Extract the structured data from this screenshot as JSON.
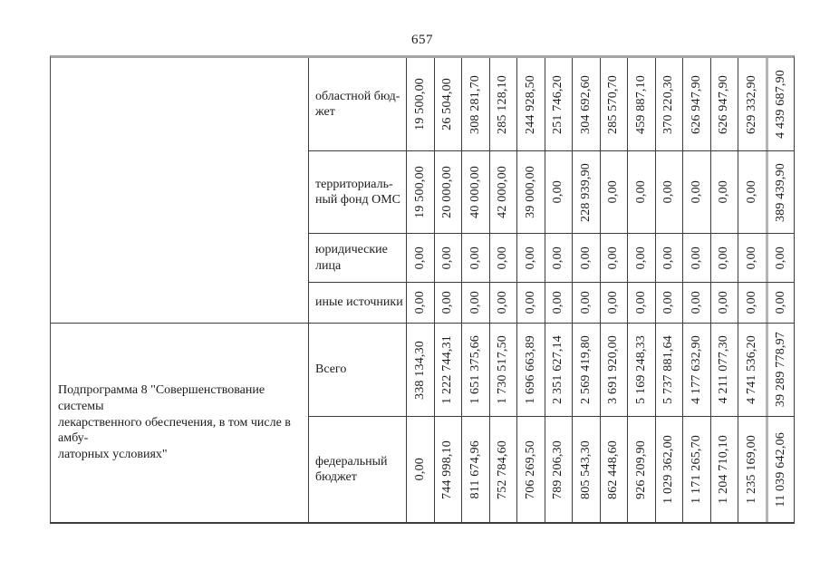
{
  "page": {
    "number": "657"
  },
  "colors": {
    "grid_line": "#3c3c3c",
    "outer_top_line": "#a3a3a3",
    "total_divider_line": "#b5b5b5",
    "background": "#ffffff"
  },
  "table": {
    "program_name": "Подпрограмма 8 \"Совершенствование системы\nлекарственного обеспечения, в том числе в амбу-\nлаторных условиях\"",
    "rows": [
      {
        "label": "областной бюд-\nжет",
        "values": [
          "19 500,00",
          "26 504,00",
          "308 281,70",
          "285 128,10",
          "244 928,50",
          "251 746,20",
          "304 692,60",
          "285 570,70",
          "459 887,10",
          "370 220,30",
          "626 947,90",
          "626 947,90",
          "629 332,90",
          "4 439 687,90"
        ]
      },
      {
        "label": "территориаль-\nный фонд ОМС",
        "values": [
          "19 500,00",
          "20 000,00",
          "40 000,00",
          "42 000,00",
          "39 000,00",
          "0,00",
          "228 939,90",
          "0,00",
          "0,00",
          "0,00",
          "0,00",
          "0,00",
          "0,00",
          "389 439,90"
        ]
      },
      {
        "label": "юридические\nлица",
        "values": [
          "0,00",
          "0,00",
          "0,00",
          "0,00",
          "0,00",
          "0,00",
          "0,00",
          "0,00",
          "0,00",
          "0,00",
          "0,00",
          "0,00",
          "0,00",
          "0,00"
        ]
      },
      {
        "label": "иные источники",
        "values": [
          "0,00",
          "0,00",
          "0,00",
          "0,00",
          "0,00",
          "0,00",
          "0,00",
          "0,00",
          "0,00",
          "0,00",
          "0,00",
          "0,00",
          "0,00",
          "0,00"
        ]
      },
      {
        "label": "Всего",
        "values": [
          "338 134,30",
          "1 222 744,31",
          "1 651 375,66",
          "1 730 517,50",
          "1 696 663,89",
          "2 351 627,14",
          "2 569 419,80",
          "3 691 920,00",
          "5 169 248,33",
          "5 737 881,64",
          "4 177 632,90",
          "4 211 077,30",
          "4 741 536,20",
          "39 289 778,97"
        ]
      },
      {
        "label": "федеральный\nбюджет",
        "values": [
          "0,00",
          "744 998,10",
          "811 674,96",
          "752 784,60",
          "706 269,50",
          "789 206,30",
          "805 543,30",
          "862 448,60",
          "926 209,90",
          "1 029 362,00",
          "1 171 265,70",
          "1 204 710,10",
          "1 235 169,00",
          "11 039 642,06"
        ]
      }
    ]
  }
}
